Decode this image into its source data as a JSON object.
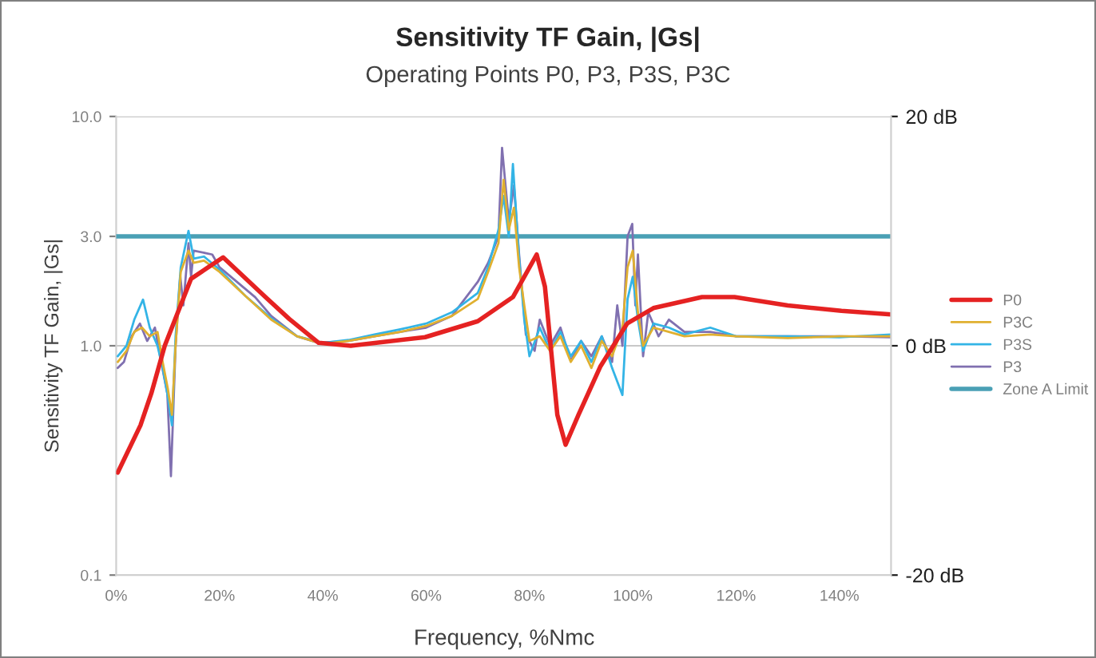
{
  "chart_data": {
    "type": "line",
    "title": "Sensitivity TF Gain, |Gs|",
    "subtitle": "Operating Points P0, P3, P3S, P3C",
    "xlabel": "Frequency, %Nmc",
    "ylabel": "Sensitivity TF Gain, |Gs|",
    "log": "y",
    "grid": "y",
    "legend": "right",
    "line_style": "solid",
    "xlim": [
      0,
      150
    ],
    "xticks": [
      {
        "value": 0,
        "label": "0%"
      },
      {
        "value": 20,
        "label": "20%"
      },
      {
        "value": 40,
        "label": "40%"
      },
      {
        "value": 60,
        "label": "60%"
      },
      {
        "value": 80,
        "label": "80%"
      },
      {
        "value": 100,
        "label": "100%"
      },
      {
        "value": 120,
        "label": "120%"
      },
      {
        "value": 140,
        "label": "140%"
      }
    ],
    "ylim": [
      0.1,
      10
    ],
    "yticks": [
      0.1,
      {
        "value": 1,
        "label": "1.0"
      },
      {
        "value": 3,
        "label": "3.0"
      },
      {
        "value": 10,
        "label": "10.0"
      }
    ],
    "y2lim": [
      -20,
      20
    ],
    "y2ticks": [
      {
        "value": -20,
        "label": "-20 dB"
      },
      {
        "value": 0,
        "label": "0 dB"
      },
      {
        "value": 20,
        "label": "20 dB"
      }
    ],
    "series": [
      {
        "name": "P0",
        "color": "#e52222",
        "x": [
          0.3,
          4.7,
          6.8,
          9.4,
          14.5,
          20.7,
          28.9,
          33.5,
          39.2,
          45.4,
          59.8,
          70,
          76.8,
          81.4,
          83,
          85.4,
          87,
          89.5,
          93.7,
          98.9,
          104,
          113.4,
          119.7,
          130,
          140.4,
          150
        ],
        "values": [
          0.28,
          0.45,
          0.62,
          1.0,
          1.96,
          2.43,
          1.63,
          1.31,
          1.03,
          1.0,
          1.09,
          1.28,
          1.63,
          2.5,
          1.81,
          0.5,
          0.37,
          0.5,
          0.81,
          1.25,
          1.46,
          1.63,
          1.63,
          1.5,
          1.42,
          1.37
        ]
      },
      {
        "name": "P3C",
        "color": "#e0b030",
        "x": [
          0.3,
          2,
          3.5,
          5,
          6.5,
          8,
          9,
          10,
          10.8,
          11.5,
          12.5,
          14,
          15,
          17,
          20,
          25,
          30,
          35,
          40,
          45,
          50,
          55,
          60,
          65,
          70,
          72,
          74,
          75,
          76,
          77,
          78,
          79,
          80,
          82,
          84,
          86,
          88,
          90,
          92,
          94,
          96,
          98,
          99,
          100,
          101,
          102,
          104,
          107,
          110,
          115,
          120,
          130,
          140,
          150
        ],
        "values": [
          0.85,
          0.95,
          1.15,
          1.2,
          1.1,
          1.15,
          0.85,
          0.65,
          0.5,
          1.0,
          2.1,
          2.6,
          2.3,
          2.35,
          2.1,
          1.65,
          1.3,
          1.1,
          1.02,
          1.05,
          1.1,
          1.15,
          1.22,
          1.35,
          1.6,
          2.1,
          2.8,
          5.3,
          3.2,
          4.0,
          2.2,
          1.5,
          1.05,
          1.1,
          0.95,
          1.1,
          0.85,
          1.0,
          0.8,
          1.05,
          0.9,
          1.2,
          2.2,
          2.6,
          1.4,
          1.0,
          1.2,
          1.15,
          1.1,
          1.12,
          1.1,
          1.08,
          1.1,
          1.1
        ]
      },
      {
        "name": "P3S",
        "color": "#33b4e6",
        "x": [
          0.3,
          2,
          3.5,
          5.2,
          6.5,
          8,
          9,
          10,
          10.8,
          11.5,
          12.5,
          14,
          15,
          17,
          20,
          25,
          30,
          35,
          40,
          45,
          50,
          55,
          60,
          65,
          70,
          72,
          74,
          75,
          76,
          76.8,
          78,
          79,
          80,
          82,
          84,
          86,
          88,
          90,
          92,
          94,
          96,
          98,
          99,
          100,
          101,
          102,
          104,
          107,
          110,
          115,
          120,
          130,
          140,
          150
        ],
        "values": [
          0.9,
          1.0,
          1.3,
          1.59,
          1.2,
          1.0,
          0.8,
          0.6,
          0.45,
          1.1,
          2.2,
          3.17,
          2.4,
          2.45,
          2.15,
          1.65,
          1.32,
          1.1,
          1.03,
          1.06,
          1.12,
          1.18,
          1.25,
          1.4,
          1.7,
          2.2,
          3.2,
          4.5,
          3.0,
          6.2,
          2.4,
          1.3,
          0.9,
          1.2,
          0.95,
          1.15,
          0.9,
          1.05,
          0.85,
          1.1,
          0.8,
          0.61,
          1.6,
          2.0,
          1.3,
          0.95,
          1.25,
          1.2,
          1.12,
          1.2,
          1.1,
          1.1,
          1.09,
          1.12
        ]
      },
      {
        "name": "P3",
        "color": "#8070b0",
        "x": [
          0.3,
          1.5,
          3,
          4.6,
          6,
          7.5,
          8.5,
          9.9,
          10.6,
          11.5,
          12.4,
          13,
          14,
          14.5,
          15,
          18.6,
          20,
          26.9,
          30,
          35,
          39.2,
          45,
          50,
          55,
          60,
          65,
          70,
          72,
          74,
          74.7,
          76,
          77,
          78,
          79.3,
          81,
          82,
          84,
          86,
          88,
          90,
          92,
          94,
          96,
          97,
          98,
          99,
          99.9,
          100.5,
          101,
          102,
          103,
          105,
          107,
          110,
          115,
          120,
          130,
          140,
          150
        ],
        "values": [
          0.8,
          0.85,
          1.1,
          1.25,
          1.05,
          1.2,
          0.9,
          0.62,
          0.27,
          1.0,
          2.02,
          1.5,
          2.8,
          2.0,
          2.6,
          2.5,
          2.2,
          1.63,
          1.35,
          1.1,
          1.03,
          1.05,
          1.1,
          1.15,
          1.2,
          1.35,
          1.9,
          2.3,
          3.0,
          7.3,
          3.5,
          5.0,
          2.5,
          1.12,
          0.95,
          1.3,
          1.0,
          1.2,
          0.86,
          1.05,
          0.9,
          1.1,
          0.85,
          1.5,
          1.0,
          3.0,
          3.4,
          1.5,
          2.5,
          0.9,
          1.4,
          1.1,
          1.3,
          1.15,
          1.15,
          1.1,
          1.1,
          1.1,
          1.09
        ]
      },
      {
        "name": "Zone A Limit",
        "color": "#4aa0b5",
        "x": [
          0,
          150
        ],
        "values": [
          3,
          3
        ]
      }
    ]
  }
}
